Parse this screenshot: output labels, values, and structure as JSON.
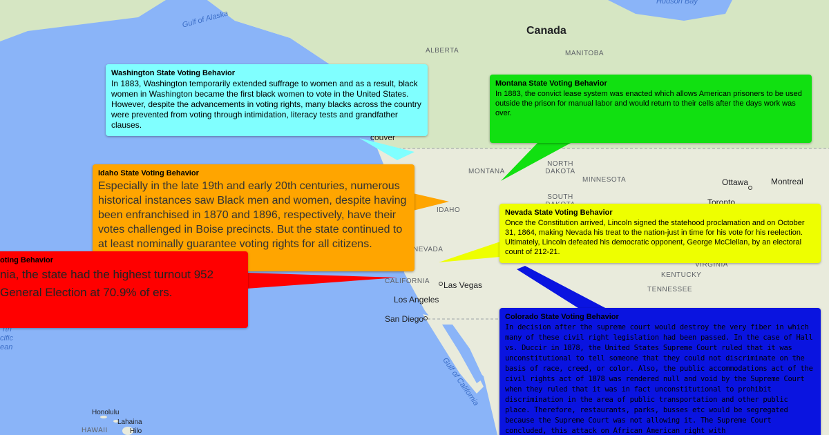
{
  "map": {
    "labels": [
      "Hudson Bay",
      "Gulf of Alaska",
      "Canada",
      "ALBERTA",
      "MANITOBA",
      "couver",
      "MONTANA",
      "NORTH DAKOTA",
      "MINNESOTA",
      "Ottawa",
      "Montreal",
      "SOUTH DAKOTA",
      "Toronto",
      "IDAHO",
      "NEVADA",
      "CALIFORNIA",
      "Las Vegas",
      "Los Angeles",
      "San Diego",
      "VIRGINIA",
      "KENTUCKY",
      "TENNESSEE",
      "Gulf of California",
      "Honolulu",
      "Lahaina",
      "HAWAII",
      "Hilo",
      "rth",
      "cific",
      "ean"
    ]
  },
  "callouts": [
    {
      "title": "Washington State Voting Behavior",
      "body": "In 1883, Washington temporarily extended suffrage to women and as a result, black women in Washington became the first black women to vote in the United States. However, despite the advancements in voting rights, many blacks across the country were prevented from voting through intimidation, literacy tests and grandfather clauses."
    },
    {
      "title": "Montana State Voting Behavior",
      "body": "In 1883, the convict lease system was enacted which allows American prisoners to be used outside the prison for manual labor and would return to their cells after the days work was over."
    },
    {
      "title": "Idaho State Voting Behavior",
      "body": "Especially in the late 19th and early 20th centuries, numerous historical instances saw Black men and women, despite having been enfranchised in 1870 and 1896, respectively, have their votes challenged in Boise precincts. But the state continued to at least nominally guarantee voting rights for all citizens."
    },
    {
      "title": "Nevada State Voting Behavior",
      "body": "Once the Constitution arrived, Lincoln signed the statehood proclamation and on October 31, 1864, making Nevada his treat to the nation-just in time for his vote for his reelection. Ultimately, Lincoln defeated his democratic opponent, George McClellan, by an electoral count of 212-21."
    },
    {
      "title": "oting Behavior",
      "body": "nia, the state had the highest turnout 952 General Election at 70.9% of ers."
    },
    {
      "title": "Colorado State Voting Behavior",
      "body": "In decision after the supreme court would destroy the very fiber in which many of these civil right legislation had been passed. In the case of Hall vs. Duccir in 1878, the United States Supreme Court ruled that it was unconstitutional to tell someone that they could not discriminate on the basis of race, creed, or color. Also, the public accommodations act of the civil rights act of 1878 was rendered null and void by the Supreme Court when they ruled that it was in fact unconstitutional to prohibit discrimination in the area of public transportation and other public place. Therefore, restaurants, parks, busses etc would be segregated because the Supreme Court was not allowing it. The Supreme Court concluded, this attack on African American right with"
    }
  ]
}
